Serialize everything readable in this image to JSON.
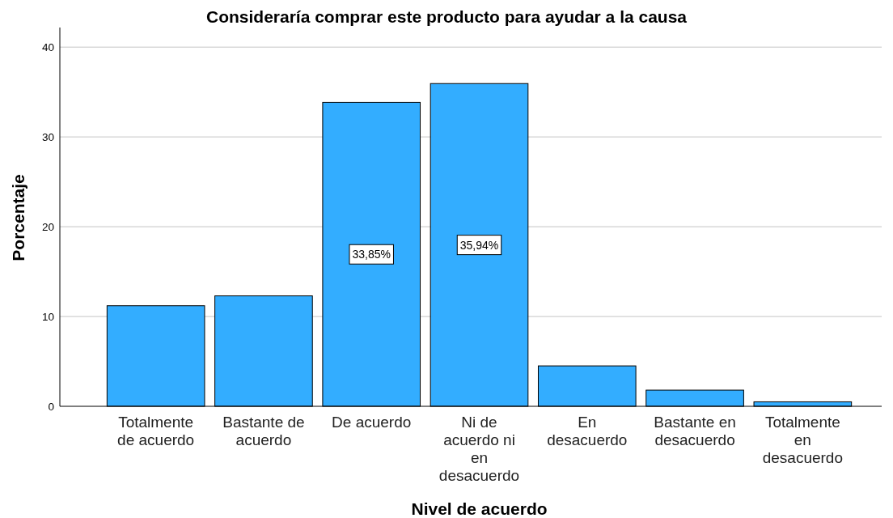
{
  "chart_data": {
    "type": "bar",
    "title": "Consideraría comprar este producto para ayudar a la causa",
    "xlabel": "Nivel de acuerdo",
    "ylabel": "Porcentaje",
    "categories": [
      "Totalmente de acuerdo",
      "Bastante de acuerdo",
      "De acuerdo",
      "Ni de acuerdo ni en desacuerdo",
      "En desacuerdo",
      "Bastante en desacuerdo",
      "Totalmente en desacuerdo"
    ],
    "values": [
      11.2,
      12.3,
      33.85,
      35.94,
      4.5,
      1.8,
      0.5
    ],
    "color": "#33adff",
    "value_labels": [
      null,
      null,
      "33,85%",
      "35,94%",
      null,
      null,
      null
    ],
    "ylim": [
      0,
      42
    ],
    "yticks": [
      0,
      10,
      20,
      30,
      40
    ],
    "grid": "y"
  }
}
